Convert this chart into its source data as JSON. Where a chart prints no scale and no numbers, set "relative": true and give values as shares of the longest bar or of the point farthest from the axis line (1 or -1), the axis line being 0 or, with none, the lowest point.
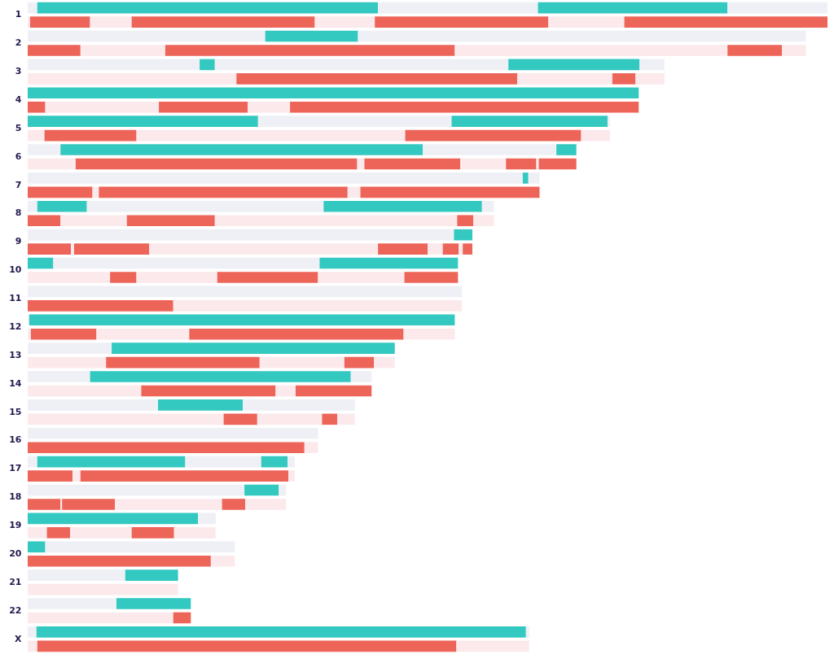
{
  "chart_data": {
    "type": "bar",
    "orientation": "horizontal",
    "relative": true,
    "stacked": true,
    "categories": [
      "1",
      null,
      "2",
      null,
      "3",
      null,
      "4",
      null,
      "5",
      null,
      "6",
      null,
      "7",
      null,
      "8",
      null,
      "9",
      null,
      "10",
      null,
      "11",
      null,
      "12",
      null,
      "13",
      null,
      "14",
      null,
      "15",
      null,
      "16",
      null,
      "17",
      null,
      "18",
      null,
      "19",
      null,
      "20",
      null,
      "21",
      null,
      "22",
      null,
      "X",
      null
    ],
    "series": [
      {
        "values": [
          0.012,
          0.003,
          0.297,
          0.066,
          0.215,
          0.261,
          0.764,
          0.022,
          0.288,
          0.021,
          0.041,
          0.06,
          0.619,
          0.081,
          0.012,
          0.041,
          0.533,
          0.054,
          0.032,
          0.103,
          0.543,
          0.182,
          0.002,
          0.004,
          0.105,
          0.098,
          0.078,
          0.142,
          0.163,
          0.245,
          0.363,
          0.346,
          0.012,
          0.056,
          0.271,
          0.041,
          0.213,
          0.024,
          0.022,
          0.229,
          0.122,
          0.188,
          0.111,
          0.182,
          0.011,
          0.012
        ],
        "colors": [
          "#eef0f5",
          "#fbe9ec",
          "#eef0f5",
          "#ed6459",
          "#eef0f5",
          "#fbe9ec",
          "#33c8c0",
          "#ed6459",
          "#33c8c0",
          "#fbe9ec",
          "#eef0f5",
          "#fbe9ec",
          "#eef0f5",
          "#ed6459",
          "#eef0f5",
          "#ed6459",
          "#eef0f5",
          "#ed6459",
          "#33c8c0",
          "#fbe9ec",
          "#eef0f5",
          "#ed6459",
          "#eef0f5",
          "#fbe9ec",
          "#eef0f5",
          "#fbe9ec",
          "#eef0f5",
          "#fbe9ec",
          "#eef0f5",
          "#fbe9ec",
          "#eef0f5",
          "#ed6459",
          "#eef0f5",
          "#ed6459",
          "#eef0f5",
          "#ed6459",
          "#33c8c0",
          "#fbe9ec",
          "#33c8c0",
          "#ed6459",
          "#eef0f5",
          "#fbe9ec",
          "#eef0f5",
          "#fbe9ec",
          "#eef0f5",
          "#fbe9ec"
        ]
      },
      {
        "values": [
          0.426,
          0.075,
          0.116,
          0.106,
          0.019,
          0.351,
          null,
          0.142,
          0.242,
          0.115,
          0.453,
          0.352,
          0.007,
          0.008,
          0.062,
          0.083,
          0.023,
          0.004,
          0.333,
          0.033,
          null,
          0.361,
          0.532,
          0.082,
          0.354,
          0.192,
          0.326,
          0.168,
          0.106,
          0.042,
          null,
          0.017,
          0.185,
          0.01,
          0.043,
          0.002,
          0.022,
          0.029,
          0.237,
          0.03,
          0.066,
          null,
          0.093,
          0.022,
          0.612,
          0.524
        ],
        "colors": [
          "#33c8c0",
          "#ed6459",
          "#33c8c0",
          "#fbe9ec",
          "#33c8c0",
          "#ed6459",
          null,
          "#fbe9ec",
          "#eef0f5",
          "#ed6459",
          "#33c8c0",
          "#ed6459",
          "#33c8c0",
          "#fbe9ec",
          "#33c8c0",
          "#fbe9ec",
          "#33c8c0",
          "#fbe9ec",
          "#eef0f5",
          "#ed6459",
          null,
          "#fbe9ec",
          "#33c8c0",
          "#ed6459",
          "#33c8c0",
          "#ed6459",
          "#33c8c0",
          "#ed6459",
          "#33c8c0",
          "#ed6459",
          null,
          "#fbe9ec",
          "#33c8c0",
          "#fbe9ec",
          "#33c8c0",
          "#fbe9ec",
          "#eef0f5",
          "#ed6459",
          "#eef0f5",
          "#fbe9ec",
          "#33c8c0",
          null,
          "#33c8c0",
          "#ed6459",
          "#33c8c0",
          "#ed6459"
        ]
      },
      {
        "values": [
          0.2,
          0.052,
          0.56,
          0.362,
          0.367,
          0.119,
          null,
          0.111,
          0.195,
          0.336,
          0.167,
          0.009,
          0.014,
          0.311,
          0.296,
          0.11,
          null,
          0.094,
          0.173,
          0.101,
          null,
          null,
          null,
          0.116,
          null,
          0.106,
          0.026,
          0.025,
          0.14,
          0.081,
          null,
          null,
          0.095,
          0.26,
          0.009,
          0.066,
          null,
          0.077,
          null,
          null,
          null,
          null,
          null,
          null,
          0.004,
          0.091
        ],
        "colors": [
          "#eef0f5",
          "#fbe9ec",
          "#eef0f5",
          "#ed6459",
          "#eef0f5",
          "#fbe9ec",
          null,
          "#ed6459",
          "#33c8c0",
          "#fbe9ec",
          "#eef0f5",
          "#fbe9ec",
          "#eef0f5",
          "#ed6459",
          "#eef0f5",
          "#ed6459",
          null,
          "#ed6459",
          "#33c8c0",
          "#fbe9ec",
          null,
          null,
          null,
          "#fbe9ec",
          null,
          "#fbe9ec",
          "#eef0f5",
          "#fbe9ec",
          "#eef0f5",
          "#fbe9ec",
          null,
          null,
          "#eef0f5",
          "#ed6459",
          "#eef0f5",
          "#ed6459",
          null,
          "#fbe9ec",
          null,
          null,
          null,
          null,
          null,
          null,
          "#eef0f5",
          "#fbe9ec"
        ]
      },
      {
        "values": [
          0.237,
          0.229,
          null,
          0.341,
          0.164,
          0.029,
          null,
          0.053,
          0.003,
          0.22,
          0.025,
          0.12,
          null,
          0.016,
          0.198,
          0.303,
          null,
          0.286,
          null,
          0.126,
          null,
          null,
          null,
          0.268,
          null,
          0.037,
          null,
          0.095,
          null,
          0.019,
          null,
          null,
          0.033,
          0.008,
          null,
          0.134,
          null,
          0.053,
          null,
          null,
          null,
          null,
          null,
          null,
          null,
          null
        ],
        "colors": [
          "#33c8c0",
          "#ed6459",
          null,
          "#fbe9ec",
          "#33c8c0",
          "#ed6459",
          null,
          "#fbe9ec",
          "#eef0f5",
          "#ed6459",
          "#33c8c0",
          "#ed6459",
          null,
          "#fbe9ec",
          "#33c8c0",
          "#fbe9ec",
          null,
          "#fbe9ec",
          null,
          "#ed6459",
          null,
          null,
          null,
          "#ed6459",
          null,
          "#ed6459",
          null,
          "#ed6459",
          null,
          "#ed6459",
          null,
          null,
          "#33c8c0",
          "#fbe9ec",
          null,
          "#fbe9ec",
          null,
          "#ed6459",
          null,
          null,
          null,
          null,
          null,
          null,
          null,
          null
        ]
      },
      {
        "values": [
          0.125,
          0.075,
          null,
          0.068,
          0.031,
          0.036,
          null,
          0.436,
          null,
          0.036,
          null,
          0.057,
          null,
          0.224,
          0.015,
          0.02,
          null,
          0.062,
          null,
          0.108,
          null,
          null,
          null,
          0.064,
          null,
          0.026,
          null,
          null,
          null,
          0.022,
          null,
          null,
          0.009,
          null,
          null,
          0.029,
          null,
          0.052,
          null,
          null,
          null,
          null,
          null,
          null,
          null,
          null
        ],
        "colors": [
          "#eef0f5",
          "#fbe9ec",
          null,
          "#ed6459",
          "#eef0f5",
          "#fbe9ec",
          null,
          "#ed6459",
          null,
          "#fbe9ec",
          null,
          "#fbe9ec",
          null,
          "#ed6459",
          "#eef0f5",
          "#ed6459",
          null,
          "#ed6459",
          null,
          "#fbe9ec",
          null,
          null,
          null,
          "#fbe9ec",
          null,
          "#fbe9ec",
          null,
          null,
          null,
          "#fbe9ec",
          null,
          null,
          "#eef0f5",
          null,
          null,
          "#ed6459",
          null,
          "#fbe9ec",
          null,
          null,
          null,
          null,
          null,
          null,
          null,
          null
        ]
      },
      {
        "values": [
          null,
          0.217,
          null,
          0.03,
          null,
          null,
          null,
          null,
          null,
          null,
          null,
          0.038,
          null,
          null,
          null,
          0.026,
          null,
          0.019,
          null,
          0.067,
          null,
          null,
          null,
          null,
          null,
          null,
          null,
          null,
          null,
          null,
          null,
          null,
          null,
          null,
          null,
          0.051,
          null,
          null,
          null,
          null,
          null,
          null,
          null,
          null,
          null,
          null
        ],
        "colors": [
          null,
          "#ed6459",
          null,
          "#fbe9ec",
          null,
          null,
          null,
          null,
          null,
          null,
          null,
          "#ed6459",
          null,
          null,
          null,
          "#fbe9ec",
          null,
          "#fbe9ec",
          null,
          "#ed6459",
          null,
          null,
          null,
          null,
          null,
          null,
          null,
          null,
          null,
          null,
          null,
          null,
          null,
          null,
          null,
          "#fbe9ec",
          null,
          null,
          null,
          null,
          null,
          null,
          null,
          null,
          null,
          null
        ]
      },
      {
        "values": [
          null,
          0.095,
          null,
          null,
          null,
          null,
          null,
          null,
          null,
          null,
          null,
          0.003,
          null,
          null,
          null,
          null,
          null,
          0.02,
          null,
          null,
          null,
          null,
          null,
          null,
          null,
          null,
          null,
          null,
          null,
          null,
          null,
          null,
          null,
          null,
          null,
          null,
          null,
          null,
          null,
          null,
          null,
          null,
          null,
          null,
          null,
          null
        ],
        "colors": [
          null,
          "#fbe9ec",
          null,
          null,
          null,
          null,
          null,
          null,
          null,
          null,
          null,
          "#fbe9ec",
          null,
          null,
          null,
          null,
          null,
          "#ed6459",
          null,
          null,
          null,
          null,
          null,
          null,
          null,
          null,
          null,
          null,
          null,
          null,
          null,
          null,
          null,
          null,
          null,
          null,
          null,
          null,
          null,
          null,
          null,
          null,
          null,
          null,
          null,
          null
        ]
      },
      {
        "values": [
          null,
          0.254,
          null,
          null,
          null,
          null,
          null,
          null,
          null,
          null,
          null,
          0.047,
          null,
          null,
          null,
          null,
          null,
          0.005,
          null,
          null,
          null,
          null,
          null,
          null,
          null,
          null,
          null,
          null,
          null,
          null,
          null,
          null,
          null,
          null,
          null,
          null,
          null,
          null,
          null,
          null,
          null,
          null,
          null,
          null,
          null,
          null
        ],
        "colors": [
          null,
          "#ed6459",
          null,
          null,
          null,
          null,
          null,
          null,
          null,
          null,
          null,
          "#ed6459",
          null,
          null,
          null,
          null,
          null,
          "#fbe9ec",
          null,
          null,
          null,
          null,
          null,
          null,
          null,
          null,
          null,
          null,
          null,
          null,
          null,
          null,
          null,
          null,
          null,
          null,
          null,
          null,
          null,
          null,
          null,
          null,
          null,
          null,
          null,
          null
        ]
      },
      {
        "values": [
          null,
          null,
          null,
          null,
          null,
          null,
          null,
          null,
          null,
          null,
          null,
          null,
          null,
          null,
          null,
          null,
          null,
          0.012,
          null,
          null,
          null,
          null,
          null,
          null,
          null,
          null,
          null,
          null,
          null,
          null,
          null,
          null,
          null,
          null,
          null,
          null,
          null,
          null,
          null,
          null,
          null,
          null,
          null,
          null,
          null,
          null
        ],
        "colors": [
          null,
          null,
          null,
          null,
          null,
          null,
          null,
          null,
          null,
          null,
          null,
          null,
          null,
          null,
          null,
          null,
          null,
          "#ed6459",
          null,
          null,
          null,
          null,
          null,
          null,
          null,
          null,
          null,
          null,
          null,
          null,
          null,
          null,
          null,
          null,
          null,
          null,
          null,
          null,
          null,
          null,
          null,
          null,
          null,
          null,
          null,
          null
        ]
      }
    ]
  }
}
